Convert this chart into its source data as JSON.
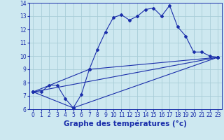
{
  "background_color": "#cde8f0",
  "grid_color": "#a8cdd8",
  "line_color": "#1a2eaa",
  "xlim": [
    -0.5,
    23.5
  ],
  "ylim": [
    6,
    14
  ],
  "xlabel": "Graphe des températures (°c)",
  "xlabel_fontsize": 7.5,
  "xticks": [
    0,
    1,
    2,
    3,
    4,
    5,
    6,
    7,
    8,
    9,
    10,
    11,
    12,
    13,
    14,
    15,
    16,
    17,
    18,
    19,
    20,
    21,
    22,
    23
  ],
  "yticks": [
    6,
    7,
    8,
    9,
    10,
    11,
    12,
    13,
    14
  ],
  "line1_x": [
    0,
    1,
    2,
    3,
    4,
    5,
    6,
    7,
    8,
    9,
    10,
    11,
    12,
    13,
    14,
    15,
    16,
    17,
    18,
    19,
    20,
    21,
    22,
    23
  ],
  "line1_y": [
    7.3,
    7.3,
    7.8,
    7.8,
    6.8,
    6.1,
    7.1,
    9.0,
    10.5,
    11.8,
    12.9,
    13.1,
    12.7,
    13.0,
    13.5,
    13.6,
    13.0,
    13.8,
    12.2,
    11.5,
    10.3,
    10.3,
    10.0,
    9.9
  ],
  "line2_x": [
    0,
    23
  ],
  "line2_y": [
    7.3,
    9.9
  ],
  "line3_x": [
    0,
    7,
    23
  ],
  "line3_y": [
    7.3,
    9.0,
    9.9
  ],
  "line4_x": [
    0,
    5,
    23
  ],
  "line4_y": [
    7.3,
    6.1,
    9.9
  ],
  "tick_labelsize": 5.5,
  "xlabel_bold": true
}
